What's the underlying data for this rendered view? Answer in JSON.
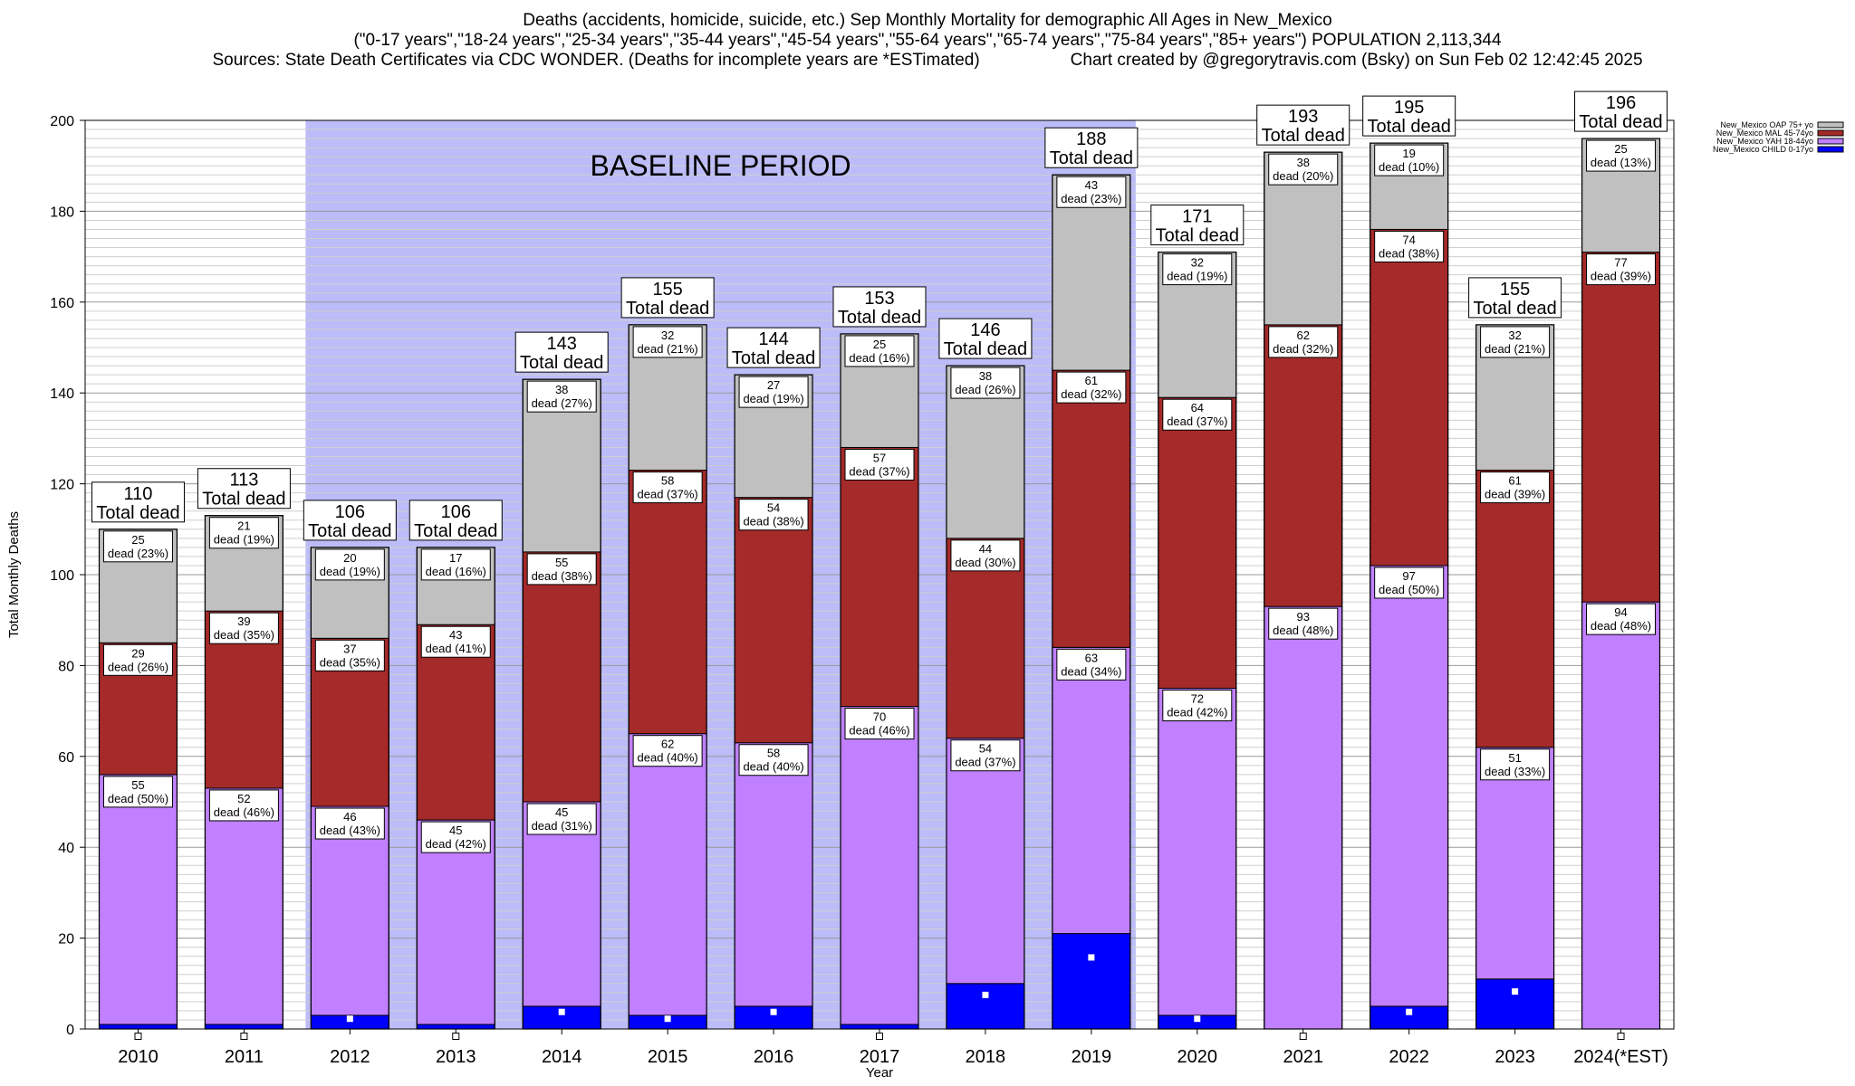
{
  "title": {
    "line1": "Deaths (accidents, homicide, suicide, etc.) Sep Monthly Mortality for demographic All Ages in New_Mexico",
    "line2": "(\"0-17 years\",\"18-24 years\",\"25-34 years\",\"35-44 years\",\"45-54 years\",\"55-64 years\",\"65-74 years\",\"75-84 years\",\"85+ years\") POPULATION 2,113,344",
    "line3_left": "Sources: State Death Certificates via CDC WONDER. (Deaths for incomplete years are *ESTimated)",
    "line3_right": "Chart created by @gregorytravis.com (Bsky) on Sun Feb 02 12:42:45 2025"
  },
  "chart_data": {
    "type": "bar",
    "stacked": true,
    "xlabel": "Year",
    "ylabel": "Total Monthly Deaths",
    "ylim": [
      0,
      200
    ],
    "yticks": [
      0,
      20,
      40,
      60,
      80,
      100,
      120,
      140,
      160,
      180,
      200
    ],
    "grid": true,
    "legend_position": "top-right",
    "categories": [
      "2010",
      "2011",
      "2012",
      "2013",
      "2014",
      "2015",
      "2016",
      "2017",
      "2018",
      "2019",
      "2020",
      "2021",
      "2022",
      "2023",
      "2024(*EST)"
    ],
    "baseline_period": {
      "label": "BASELINE PERIOD",
      "from": "2012",
      "to": "2019",
      "color": "#bcbcf8"
    },
    "total_suffix": "Total dead",
    "dead_word": "dead",
    "totals": [
      110,
      113,
      106,
      106,
      143,
      155,
      144,
      153,
      146,
      188,
      171,
      193,
      195,
      155,
      196
    ],
    "series": [
      {
        "name": "New_Mexico CHILD 0-17yo",
        "color": "#0000ff",
        "values": [
          1,
          1,
          3,
          1,
          5,
          3,
          5,
          1,
          10,
          21,
          3,
          0,
          5,
          11,
          0
        ]
      },
      {
        "name": "New_Mexico YAH 18-44yo",
        "color": "#c080ff",
        "values": [
          55,
          52,
          46,
          45,
          45,
          62,
          58,
          70,
          54,
          63,
          72,
          93,
          97,
          51,
          94
        ],
        "pcts": [
          50,
          46,
          43,
          42,
          31,
          40,
          40,
          46,
          37,
          34,
          42,
          48,
          50,
          33,
          48
        ]
      },
      {
        "name": "New_Mexico MAL 45-74yo",
        "color": "#a52a2a",
        "values": [
          29,
          39,
          37,
          43,
          55,
          58,
          54,
          57,
          44,
          61,
          64,
          62,
          74,
          61,
          77
        ],
        "pcts": [
          26,
          35,
          35,
          41,
          38,
          37,
          38,
          37,
          30,
          32,
          37,
          32,
          38,
          39,
          39
        ]
      },
      {
        "name": "New_Mexico OAP 75+ yo",
        "color": "#c0c0c0",
        "values": [
          25,
          21,
          20,
          17,
          38,
          32,
          27,
          25,
          38,
          43,
          32,
          38,
          19,
          32,
          25
        ],
        "pcts": [
          23,
          19,
          19,
          16,
          27,
          21,
          19,
          16,
          26,
          23,
          19,
          20,
          10,
          21,
          13
        ]
      }
    ]
  }
}
